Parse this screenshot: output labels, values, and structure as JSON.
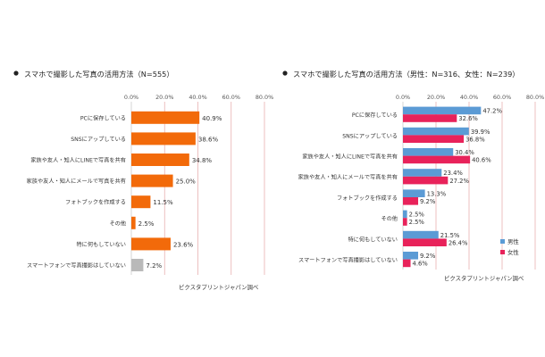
{
  "source_note": "ピクスタプリントジャパン調べ",
  "colors": {
    "total": "#f26a0a",
    "other": "#b9b9b9",
    "male": "#5b9bd5",
    "female": "#e8225a",
    "gridline_red": "#e8b0b0"
  },
  "chart_data": [
    {
      "type": "bar",
      "orientation": "horizontal",
      "title": "スマホで撮影した写真の活用方法（N=555）",
      "xlim": [
        0,
        80
      ],
      "ticks": [
        "0.0%",
        "20.0%",
        "40.0%",
        "60.0%",
        "80.0%"
      ],
      "categories": [
        "PCに保存している",
        "SNSにアップしている",
        "家族や友人・知人にLINEで写真を共有",
        "家族や友人・知人にメールで写真を共有",
        "フォトブックを作成する",
        "その他",
        "特に何もしていない",
        "スマートフォンで写真撮影はしていない"
      ],
      "values": [
        40.9,
        38.6,
        34.8,
        25.0,
        11.5,
        2.5,
        23.6,
        7.2
      ],
      "labels": [
        "40.9%",
        "38.6%",
        "34.8%",
        "25.0%",
        "11.5%",
        "2.5%",
        "23.6%",
        "7.2%"
      ],
      "grid": true
    },
    {
      "type": "bar",
      "orientation": "horizontal",
      "title": "スマホで撮影した写真の活用方法（男性：N=316、女性：N=239）",
      "xlim": [
        0,
        80
      ],
      "ticks": [
        "0.0%",
        "20.0%",
        "40.0%",
        "60.0%",
        "80.0%"
      ],
      "categories": [
        "PCに保存している",
        "SNSにアップしている",
        "家族や友人・知人にLINEで写真を共有",
        "家族や友人・知人にメールで写真を共有",
        "フォトブックを作成する",
        "その他",
        "特に何もしていない",
        "スマートフォンで写真撮影はしていない"
      ],
      "series": [
        {
          "name": "男性",
          "values": [
            47.2,
            39.9,
            30.4,
            23.4,
            13.3,
            2.5,
            21.5,
            9.2
          ],
          "labels": [
            "47.2%",
            "39.9%",
            "30.4%",
            "23.4%",
            "13.3%",
            "2.5%",
            "21.5%",
            "9.2%"
          ]
        },
        {
          "name": "女性",
          "values": [
            32.6,
            36.8,
            40.6,
            27.2,
            9.2,
            2.5,
            26.4,
            4.6
          ],
          "labels": [
            "32.6%",
            "36.8%",
            "40.6%",
            "27.2%",
            "9.2%",
            "2.5%",
            "26.4%",
            "4.6%"
          ]
        }
      ],
      "legend": "bottom-right",
      "grid": true
    }
  ]
}
